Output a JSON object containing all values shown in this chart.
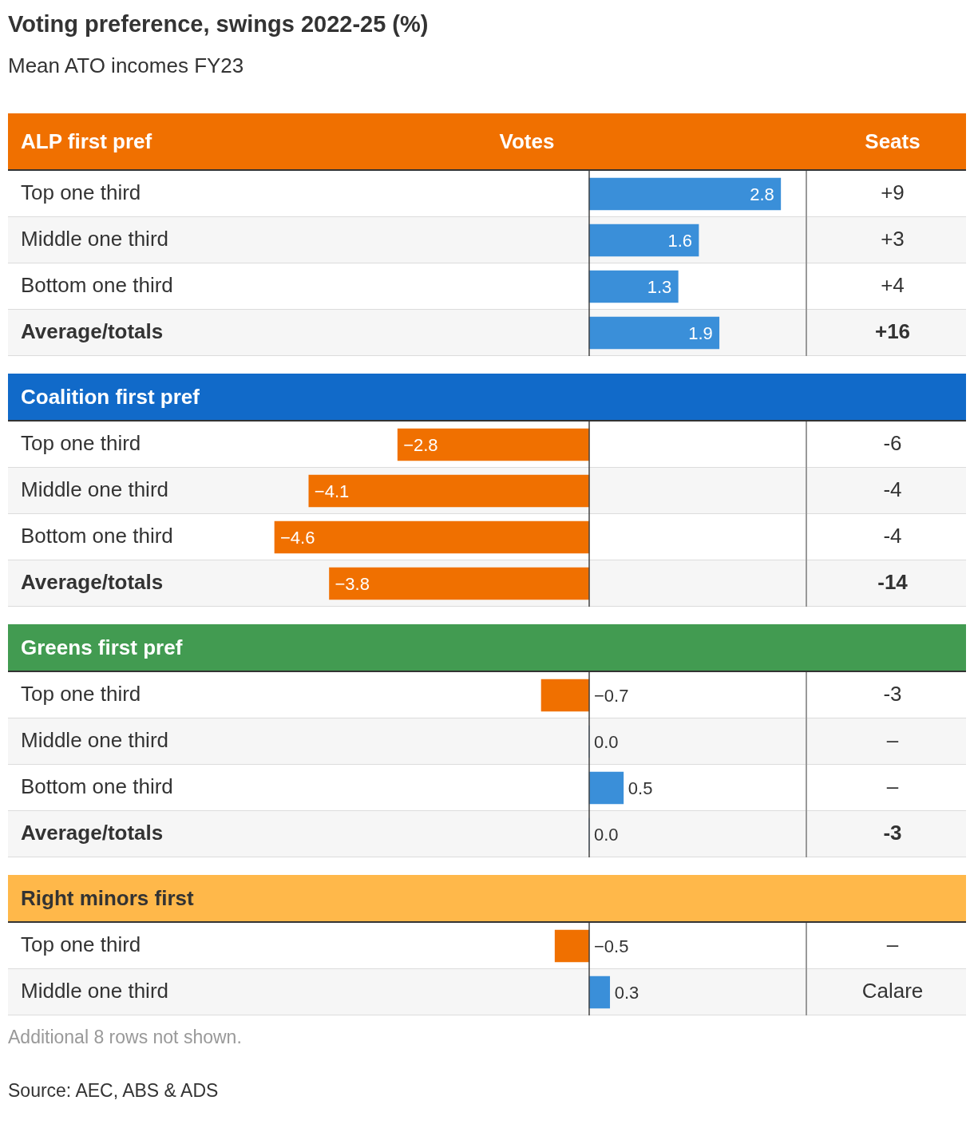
{
  "chart_data": [
    {
      "type": "other",
      "title": "Voting preference, swings 2022-25 (%)",
      "subtitle": "Mean ATO incomes FY23"
    },
    {
      "type": "bar",
      "orientation": "horizontal",
      "ylabel": "ALP first pref",
      "xlabel": "Votes",
      "y2label": "Seats",
      "tick_labels": false,
      "categories": [
        "Top one third",
        "Middle one third",
        "Bottom one third",
        "Average/totals"
      ],
      "values": [
        2.8,
        1.6,
        1.3,
        1.9
      ],
      "colors": [
        "#3a8fd9",
        "#3a8fd9",
        "#3a8fd9",
        "#3a8fd9"
      ],
      "value_labels": [
        "2.8",
        "1.6",
        "1.3",
        "1.9"
      ],
      "y2_categories": [
        "+9",
        "+3",
        "+4",
        "+16"
      ]
    },
    {
      "type": "bar",
      "orientation": "horizontal",
      "ylabel": "Coalition first pref",
      "tick_labels": false,
      "categories": [
        "Top one third",
        "Middle one third",
        "Bottom one third",
        "Average/totals"
      ],
      "values": [
        -2.8,
        -4.1,
        -4.6,
        -3.8
      ],
      "colors": [
        "#f07000",
        "#f07000",
        "#f07000",
        "#f07000"
      ],
      "value_labels": [
        "−2.8",
        "−4.1",
        "−4.6",
        "−3.8"
      ],
      "y2_categories": [
        "-6",
        "-4",
        "-4",
        "-14"
      ]
    },
    {
      "type": "bar",
      "orientation": "horizontal",
      "ylabel": "Greens first pref",
      "tick_labels": false,
      "categories": [
        "Top one third",
        "Middle one third",
        "Bottom one third",
        "Average/totals"
      ],
      "values": [
        -0.7,
        0.0,
        0.5,
        0.0
      ],
      "colors": [
        "#f07000",
        "#3a8fd9",
        "#3a8fd9",
        "#3a8fd9"
      ],
      "value_labels": [
        "−0.7",
        "0.0",
        "0.5",
        "0.0"
      ],
      "y2_categories": [
        "-3",
        "–",
        "–",
        "-3"
      ]
    },
    {
      "type": "bar",
      "orientation": "horizontal",
      "ylabel": "Right minors first",
      "tick_labels": false,
      "categories": [
        "Top one third",
        "Middle one third"
      ],
      "values": [
        -0.5,
        0.3
      ],
      "colors": [
        "#f07000",
        "#3a8fd9"
      ],
      "value_labels": [
        "−0.5",
        "0.3"
      ],
      "y2_categories": [
        "–",
        "Calare"
      ],
      "annotations": [
        "Additional 8 rows not shown.",
        "Source: AEC, ABS & ADS"
      ]
    }
  ]
}
